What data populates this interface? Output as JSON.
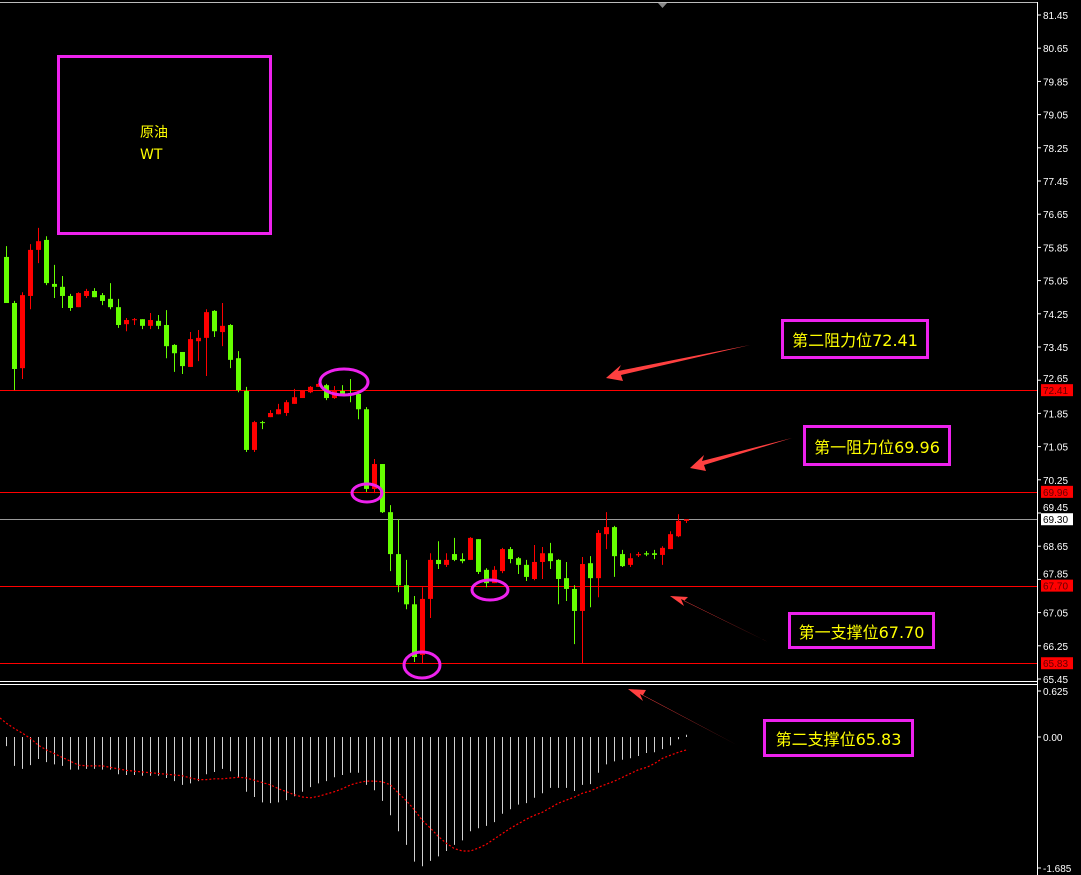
{
  "instrument": {
    "name": "原油",
    "code": "WT"
  },
  "colors": {
    "background": "#000000",
    "up_candle": "#ff0000",
    "down_candle": "#66ff00",
    "level_line": "#ff0000",
    "current_price_line": "#9a9a9a",
    "annotation_border": "#ee22ee",
    "annotation_text": "#ffff00",
    "arrow": "#ff4040",
    "histogram": "#d0d0d0",
    "signal_line": "#ff0000"
  },
  "annotations": [
    {
      "label": "第二阻力位72.41",
      "level": 72.41
    },
    {
      "label": "第一阻力位69.96",
      "level": 69.96
    },
    {
      "label": "第一支撑位67.70",
      "level": 67.7
    },
    {
      "label": "第二支撑位65.83",
      "level": 65.83
    }
  ],
  "chart_data": [
    {
      "type": "candlestick",
      "ylim": [
        65.4,
        81.76
      ],
      "y_ticks": [
        "81.45",
        "80.65",
        "79.85",
        "79.05",
        "78.25",
        "77.45",
        "76.65",
        "75.85",
        "75.05",
        "74.25",
        "73.45",
        "72.65",
        "71.85",
        "71.05",
        "70.25",
        "69.45",
        "68.65",
        "67.85",
        "67.05",
        "66.25",
        "65.45"
      ],
      "horizontal_lines": [
        {
          "price": 72.41,
          "tag": "72.41",
          "kind": "resistance"
        },
        {
          "price": 69.96,
          "tag": "69.96",
          "kind": "resistance"
        },
        {
          "price": 69.3,
          "tag": "69.30",
          "kind": "current"
        },
        {
          "price": 67.7,
          "tag": "67.70",
          "kind": "support"
        },
        {
          "price": 65.83,
          "tag": "65.83",
          "kind": "support"
        }
      ],
      "candles_ohlc": [
        [
          75.62,
          75.88,
          74.51,
          74.51
        ],
        [
          74.51,
          74.56,
          72.41,
          72.92
        ],
        [
          72.94,
          74.77,
          72.68,
          74.7
        ],
        [
          74.68,
          75.93,
          74.36,
          75.79
        ],
        [
          75.79,
          76.32,
          75.47,
          76.0
        ],
        [
          76.03,
          76.12,
          74.94,
          74.99
        ],
        [
          74.97,
          75.43,
          74.63,
          74.9
        ],
        [
          74.9,
          75.16,
          74.39,
          74.68
        ],
        [
          74.68,
          74.73,
          74.32,
          74.39
        ],
        [
          74.41,
          74.77,
          74.41,
          74.75
        ],
        [
          74.68,
          74.85,
          74.63,
          74.8
        ],
        [
          74.8,
          74.87,
          74.65,
          74.65
        ],
        [
          74.7,
          74.75,
          74.46,
          74.56
        ],
        [
          74.61,
          74.99,
          74.36,
          74.41
        ],
        [
          74.41,
          74.61,
          73.91,
          73.98
        ],
        [
          74.0,
          74.15,
          73.83,
          74.1
        ],
        [
          74.1,
          74.15,
          73.98,
          74.12
        ],
        [
          74.12,
          74.12,
          73.88,
          73.96
        ],
        [
          73.96,
          74.27,
          73.88,
          74.1
        ],
        [
          74.08,
          74.22,
          73.88,
          73.96
        ],
        [
          73.98,
          74.34,
          73.18,
          73.47
        ],
        [
          73.5,
          73.52,
          72.85,
          73.3
        ],
        [
          73.33,
          73.33,
          72.8,
          72.99
        ],
        [
          72.97,
          73.81,
          72.97,
          73.64
        ],
        [
          73.59,
          73.86,
          73.11,
          73.67
        ],
        [
          73.67,
          74.36,
          72.75,
          74.29
        ],
        [
          74.32,
          74.34,
          73.69,
          73.83
        ],
        [
          73.81,
          74.51,
          73.47,
          73.96
        ],
        [
          73.98,
          74.0,
          72.94,
          73.14
        ],
        [
          73.18,
          73.35,
          72.36,
          72.41
        ],
        [
          72.39,
          72.49,
          70.92,
          70.97
        ],
        [
          70.97,
          71.67,
          70.92,
          71.64
        ],
        [
          71.64,
          71.67,
          71.47,
          71.62
        ],
        [
          71.76,
          71.93,
          71.76,
          71.86
        ],
        [
          71.83,
          72.08,
          71.83,
          71.95
        ],
        [
          71.86,
          72.17,
          71.79,
          72.12
        ],
        [
          72.08,
          72.44,
          72.08,
          72.24
        ],
        [
          72.22,
          72.41,
          72.22,
          72.39
        ],
        [
          72.36,
          72.51,
          72.34,
          72.49
        ],
        [
          72.49,
          72.58,
          72.49,
          72.56
        ],
        [
          72.53,
          72.56,
          72.17,
          72.22
        ],
        [
          72.22,
          72.51,
          72.2,
          72.39
        ],
        [
          72.39,
          72.53,
          72.27,
          72.32
        ],
        [
          72.34,
          72.68,
          72.12,
          72.29
        ],
        [
          72.32,
          72.34,
          71.71,
          71.95
        ],
        [
          71.95,
          72.0,
          69.96,
          70.03
        ],
        [
          70.03,
          70.75,
          69.93,
          70.63
        ],
        [
          70.63,
          70.63,
          69.45,
          69.47
        ],
        [
          69.47,
          69.64,
          68.05,
          68.46
        ],
        [
          68.46,
          69.3,
          67.54,
          67.71
        ],
        [
          67.71,
          68.32,
          67.13,
          67.25
        ],
        [
          67.25,
          67.45,
          65.86,
          65.98
        ],
        [
          66.03,
          67.66,
          65.83,
          67.38
        ],
        [
          67.38,
          68.48,
          66.92,
          68.32
        ],
        [
          68.32,
          68.77,
          68.1,
          68.22
        ],
        [
          68.2,
          68.48,
          68.15,
          68.32
        ],
        [
          68.46,
          68.85,
          68.29,
          68.32
        ],
        [
          68.34,
          68.48,
          68.24,
          68.29
        ],
        [
          68.32,
          68.87,
          68.32,
          68.85
        ],
        [
          68.82,
          68.82,
          67.98,
          68.03
        ],
        [
          68.08,
          68.12,
          67.66,
          67.76
        ],
        [
          67.76,
          68.17,
          67.76,
          68.08
        ],
        [
          68.05,
          68.61,
          68.0,
          68.58
        ],
        [
          68.58,
          68.63,
          68.24,
          68.34
        ],
        [
          68.36,
          68.39,
          67.98,
          68.2
        ],
        [
          68.2,
          68.32,
          67.81,
          67.91
        ],
        [
          67.86,
          68.68,
          67.83,
          68.27
        ],
        [
          68.27,
          68.63,
          67.86,
          68.48
        ],
        [
          68.48,
          68.73,
          68.1,
          68.29
        ],
        [
          68.32,
          68.34,
          67.25,
          67.86
        ],
        [
          67.88,
          68.27,
          67.33,
          67.62
        ],
        [
          67.62,
          67.71,
          66.29,
          67.09
        ],
        [
          67.09,
          68.39,
          65.83,
          68.22
        ],
        [
          68.24,
          68.41,
          67.18,
          67.88
        ],
        [
          67.88,
          69.04,
          67.42,
          68.97
        ],
        [
          68.94,
          69.47,
          68.58,
          69.11
        ],
        [
          69.11,
          69.14,
          67.91,
          68.41
        ],
        [
          68.46,
          68.56,
          68.15,
          68.17
        ],
        [
          68.2,
          68.48,
          68.15,
          68.36
        ],
        [
          68.43,
          68.51,
          68.39,
          68.46
        ],
        [
          68.48,
          68.53,
          68.41,
          68.45
        ],
        [
          68.48,
          68.56,
          68.34,
          68.44
        ],
        [
          68.44,
          68.65,
          68.2,
          68.61
        ],
        [
          68.58,
          69.01,
          68.58,
          68.94
        ],
        [
          68.89,
          69.42,
          68.87,
          69.26
        ],
        [
          69.26,
          69.3,
          69.21,
          69.3
        ]
      ]
    },
    {
      "type": "bar",
      "ylim": [
        -1.72,
        0.7
      ],
      "y_ticks": [
        "0.625",
        "0.00",
        "-1.685"
      ],
      "histogram": [
        -0.12,
        -0.38,
        -0.42,
        -0.37,
        -0.29,
        -0.33,
        -0.36,
        -0.38,
        -0.43,
        -0.43,
        -0.42,
        -0.42,
        -0.43,
        -0.43,
        -0.49,
        -0.5,
        -0.5,
        -0.51,
        -0.51,
        -0.51,
        -0.54,
        -0.58,
        -0.63,
        -0.61,
        -0.58,
        -0.49,
        -0.46,
        -0.42,
        -0.45,
        -0.54,
        -0.72,
        -0.79,
        -0.86,
        -0.87,
        -0.86,
        -0.83,
        -0.78,
        -0.72,
        -0.66,
        -0.61,
        -0.58,
        -0.53,
        -0.5,
        -0.47,
        -0.47,
        -0.63,
        -0.7,
        -0.84,
        -1.03,
        -1.24,
        -1.42,
        -1.64,
        -1.7,
        -1.63,
        -1.57,
        -1.5,
        -1.42,
        -1.36,
        -1.24,
        -1.2,
        -1.17,
        -1.12,
        -1.01,
        -0.95,
        -0.89,
        -0.87,
        -0.8,
        -0.74,
        -0.67,
        -0.67,
        -0.67,
        -0.71,
        -0.63,
        -0.62,
        -0.47,
        -0.36,
        -0.32,
        -0.3,
        -0.28,
        -0.25,
        -0.21,
        -0.2,
        -0.16,
        -0.11,
        -0.03,
        0.03
      ],
      "signal": [
        0.18,
        0.11,
        0.05,
        -0.02,
        -0.11,
        -0.17,
        -0.22,
        -0.27,
        -0.32,
        -0.37,
        -0.38,
        -0.38,
        -0.38,
        -0.4,
        -0.42,
        -0.44,
        -0.45,
        -0.46,
        -0.47,
        -0.48,
        -0.49,
        -0.5,
        -0.51,
        -0.54,
        -0.56,
        -0.56,
        -0.55,
        -0.55,
        -0.54,
        -0.53,
        -0.54,
        -0.57,
        -0.6,
        -0.63,
        -0.68,
        -0.72,
        -0.76,
        -0.79,
        -0.8,
        -0.78,
        -0.75,
        -0.72,
        -0.68,
        -0.63,
        -0.6,
        -0.58,
        -0.58,
        -0.59,
        -0.63,
        -0.74,
        -0.84,
        -0.96,
        -1.1,
        -1.2,
        -1.31,
        -1.4,
        -1.47,
        -1.5,
        -1.5,
        -1.46,
        -1.41,
        -1.34,
        -1.27,
        -1.2,
        -1.14,
        -1.08,
        -1.03,
        -0.99,
        -0.93,
        -0.87,
        -0.83,
        -0.79,
        -0.74,
        -0.71,
        -0.66,
        -0.62,
        -0.58,
        -0.53,
        -0.48,
        -0.43,
        -0.4,
        -0.35,
        -0.28,
        -0.24,
        -0.2,
        -0.17
      ]
    }
  ]
}
